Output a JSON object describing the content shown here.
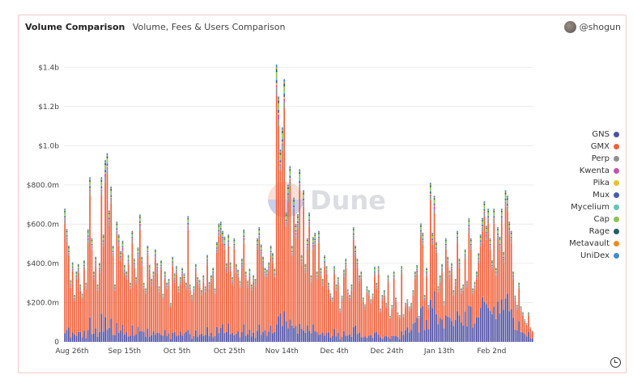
{
  "header": {
    "title": "Volume Comparison",
    "subtitle": "Volume, Fees & Users Comparison",
    "author": "@shogun"
  },
  "watermark": "Dune",
  "colors": {
    "GNS": "#4e4fa3",
    "GMX": "#f0603a",
    "Perp": "#909090",
    "Kwenta": "#c94fb0",
    "Pika": "#e8c22a",
    "Mux": "#4a5bb0",
    "Mycelium": "#5fc7b4",
    "Cap": "#8bc64a",
    "Rage": "#1f5f66",
    "Metavault": "#f08a1c",
    "UniDex": "#3f8ec7"
  },
  "chart_data": {
    "type": "bar",
    "stacked": true,
    "title": "",
    "xlabel": "",
    "ylabel": "",
    "ylim": [
      0,
      1500000000
    ],
    "y_ticks": [
      "0",
      "$200.0m",
      "$400.0m",
      "$600.0m",
      "$800.0m",
      "$1.0b",
      "$1.2b",
      "$1.4b"
    ],
    "x_ticks": [
      "Aug 26th",
      "Sep 15th",
      "Oct 5th",
      "Oct 25th",
      "Nov 14th",
      "Dec 4th",
      "Dec 24th",
      "Jan 13th",
      "Feb 2nd"
    ],
    "legend_position": "right",
    "grid": true,
    "series_names": [
      "GNS",
      "GMX",
      "Perp",
      "Kwenta",
      "Pika",
      "Mux",
      "Mycelium",
      "Cap",
      "Rage",
      "Metavault",
      "UniDex"
    ],
    "totals_m": [
      720,
      610,
      520,
      330,
      430,
      250,
      380,
      420,
      310,
      260,
      440,
      320,
      600,
      890,
      560,
      380,
      460,
      310,
      420,
      890,
      580,
      970,
      1020,
      710,
      840,
      520,
      310,
      650,
      580,
      490,
      540,
      410,
      380,
      470,
      320,
      600,
      450,
      350,
      510,
      680,
      460,
      320,
      290,
      520,
      410,
      340,
      380,
      500,
      420,
      300,
      440,
      260,
      380,
      320,
      340,
      210,
      460,
      360,
      410,
      300,
      350,
      400,
      370,
      320,
      680,
      310,
      250,
      300,
      420,
      350,
      330,
      280,
      360,
      300,
      470,
      320,
      360,
      400,
      290,
      540,
      640,
      650,
      600,
      560,
      420,
      580,
      430,
      350,
      560,
      420,
      390,
      330,
      450,
      600,
      380,
      330,
      390,
      310,
      360,
      340,
      560,
      620,
      520,
      460,
      400,
      390,
      430,
      520,
      480,
      390,
      1500,
      1310,
      1040,
      1160,
      1420,
      700,
      850,
      950,
      520,
      780,
      630,
      690,
      920,
      470,
      820,
      420,
      560,
      700,
      360,
      560,
      590,
      380,
      600,
      400,
      340,
      460,
      410,
      320,
      260,
      240,
      410,
      310,
      350,
      180,
      250,
      390,
      450,
      280,
      250,
      310,
      620,
      520,
      450,
      360,
      380,
      240,
      200,
      300,
      280,
      230,
      260,
      400,
      320,
      410,
      180,
      250,
      280,
      210,
      360,
      140,
      200,
      380,
      240,
      160,
      140,
      410,
      150,
      210,
      230,
      190,
      210,
      280,
      380,
      410,
      140,
      640,
      590,
      250,
      400,
      200,
      860,
      590,
      780,
      540,
      300,
      360,
      420,
      220,
      560,
      460,
      380,
      420,
      280,
      340,
      600,
      450,
      290,
      310,
      500,
      330,
      660,
      560,
      290,
      320,
      380,
      480,
      580,
      670,
      760,
      620,
      720,
      560,
      440,
      720,
      400,
      620,
      560,
      720,
      480,
      820,
      790,
      650,
      600,
      380,
      250,
      200,
      320,
      190,
      160,
      120,
      100,
      160,
      80,
      60
    ]
  }
}
